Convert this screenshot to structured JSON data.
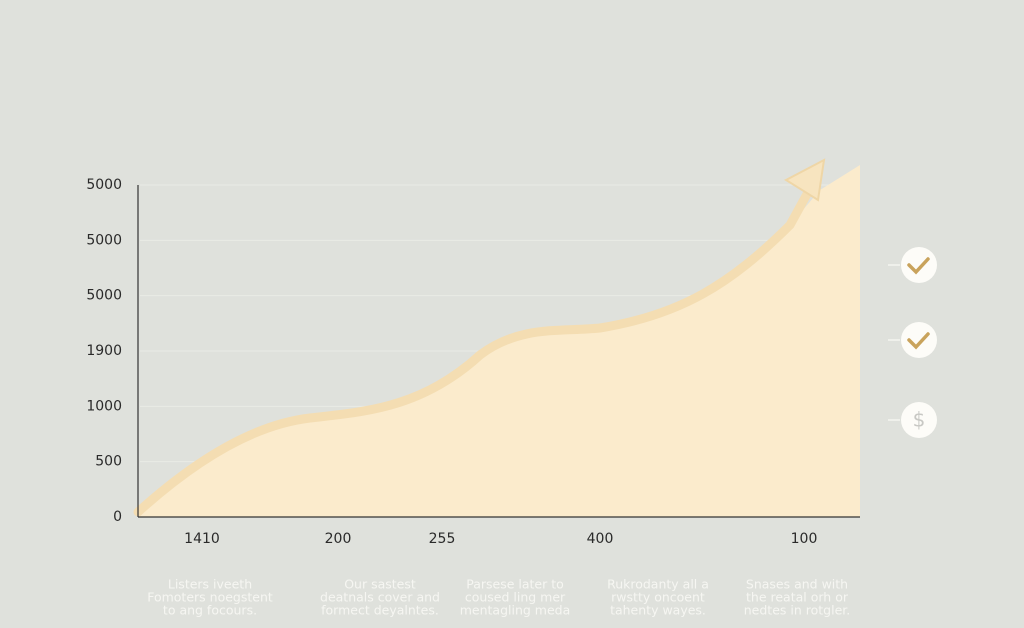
{
  "y_axis_labels": [
    "5000",
    "5000",
    "5000",
    "1900",
    "1000",
    "500",
    "0"
  ],
  "x_axis_labels": [
    "1410",
    "200",
    "255",
    "400",
    "100"
  ],
  "captions": [
    [
      "Listers iveeth",
      "Fomoters noegstent",
      "to ang focours."
    ],
    [
      "Our sastest",
      "deatnals cover and",
      "formect deyalntes."
    ],
    [
      "Parsese later to",
      "coused ling mer",
      "mentagling meda"
    ],
    [
      "Rukrodanty all a",
      "rwstty oncoent",
      "tahenty wayes."
    ],
    [
      "Snases and with",
      "the reatal orh or",
      "nedtes in rotgler."
    ]
  ],
  "icons": {
    "dollar": "$"
  }
}
